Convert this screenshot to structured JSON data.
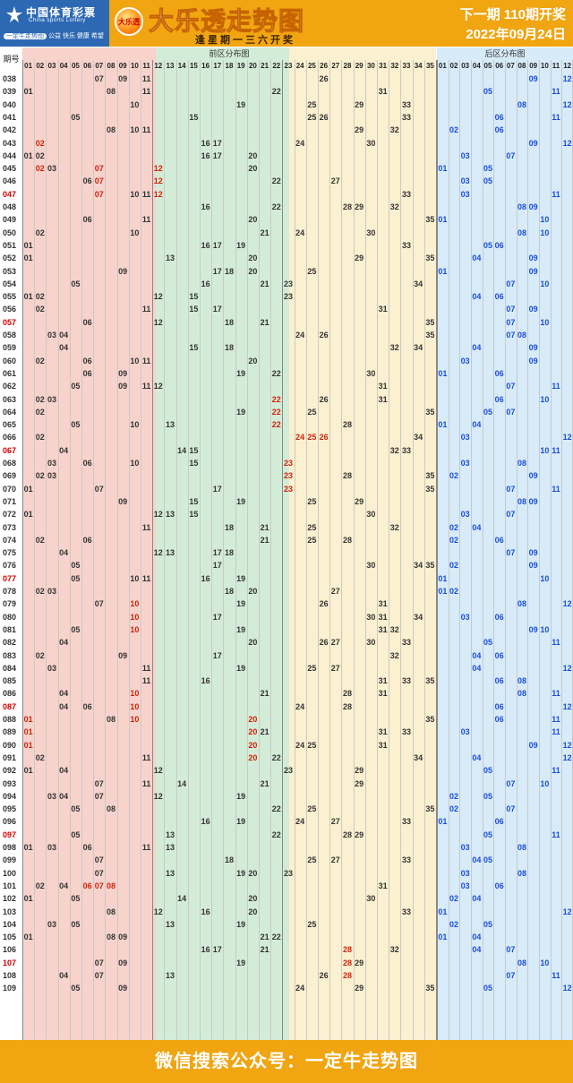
{
  "header": {
    "brand_cn": "中国体育彩票",
    "brand_en": "China sports Lottery",
    "slogan_pill": "一定牛走势图",
    "slogan": "公益 快乐 健康 希望",
    "badge": "大乐透",
    "title": "大乐透走势图",
    "subtitle": "逢星期一三六开奖",
    "next_draw": "下一期 110期开奖",
    "next_date": "2022年09月24日"
  },
  "table": {
    "issue_header": "期号",
    "front_zone_label": "前区分布图",
    "back_zone_label": "后区分布图",
    "front_columns": [
      "01",
      "02",
      "03",
      "04",
      "05",
      "06",
      "07",
      "08",
      "09",
      "10",
      "11",
      "12",
      "13",
      "14",
      "15",
      "16",
      "17",
      "18",
      "19",
      "20",
      "21",
      "22",
      "23",
      "24",
      "25",
      "26",
      "27",
      "28",
      "29",
      "30",
      "31",
      "32",
      "33",
      "34",
      "35"
    ],
    "back_columns": [
      "01",
      "02",
      "03",
      "04",
      "05",
      "06",
      "07",
      "08",
      "09",
      "10",
      "11",
      "12"
    ],
    "rows": [
      {
        "issue": "038",
        "front": [
          "07",
          "09",
          "11",
          "26"
        ],
        "back": [
          "09",
          "12"
        ]
      },
      {
        "issue": "039",
        "front": [
          "01",
          "08",
          "11",
          "22",
          "31"
        ],
        "back": [
          "05",
          "11"
        ]
      },
      {
        "issue": "040",
        "front": [
          "10",
          "19",
          "25",
          "29",
          "33"
        ],
        "back": [
          "08",
          "12"
        ]
      },
      {
        "issue": "041",
        "front": [
          "05",
          "15",
          "25",
          "26",
          "33"
        ],
        "back": [
          "06",
          "11"
        ]
      },
      {
        "issue": "042",
        "front": [
          "08",
          "10",
          "11",
          "29",
          "32"
        ],
        "back": [
          "02",
          "06"
        ]
      },
      {
        "issue": "043",
        "front": [
          "02",
          "16",
          "17",
          "24",
          "30"
        ],
        "back": [
          "09",
          "12"
        ]
      },
      {
        "issue": "044",
        "front": [
          "01",
          "02",
          "16",
          "17",
          "20"
        ],
        "back": [
          "03",
          "07"
        ]
      },
      {
        "issue": "045",
        "front": [
          "02",
          "03",
          "07",
          "12",
          "20"
        ],
        "back": [
          "01",
          "05"
        ]
      },
      {
        "issue": "046",
        "front": [
          "06",
          "07",
          "12",
          "22",
          "27"
        ],
        "back": [
          "03",
          "05"
        ]
      },
      {
        "issue": "047",
        "red": true,
        "front": [
          "07",
          "10",
          "11",
          "12",
          "33"
        ],
        "back": [
          "03",
          "11"
        ]
      },
      {
        "issue": "048",
        "front": [
          "16",
          "22",
          "28",
          "29",
          "32"
        ],
        "back": [
          "08",
          "09"
        ]
      },
      {
        "issue": "049",
        "front": [
          "06",
          "11",
          "20",
          "35"
        ],
        "back": [
          "01",
          "10"
        ]
      },
      {
        "issue": "050",
        "front": [
          "02",
          "10",
          "21",
          "24",
          "30"
        ],
        "back": [
          "08",
          "10"
        ]
      },
      {
        "issue": "051",
        "front": [
          "01",
          "16",
          "17",
          "19",
          "33"
        ],
        "back": [
          "05",
          "06"
        ]
      },
      {
        "issue": "052",
        "front": [
          "01",
          "13",
          "20",
          "29",
          "35"
        ],
        "back": [
          "04",
          "09"
        ]
      },
      {
        "issue": "053",
        "front": [
          "09",
          "17",
          "18",
          "20",
          "25"
        ],
        "back": [
          "01",
          "09"
        ]
      },
      {
        "issue": "054",
        "front": [
          "05",
          "16",
          "21",
          "23",
          "34"
        ],
        "back": [
          "07",
          "10"
        ]
      },
      {
        "issue": "055",
        "front": [
          "01",
          "02",
          "12",
          "15",
          "23"
        ],
        "back": [
          "04",
          "06"
        ]
      },
      {
        "issue": "056",
        "front": [
          "02",
          "11",
          "15",
          "17",
          "31"
        ],
        "back": [
          "07",
          "09"
        ]
      },
      {
        "issue": "057",
        "red": true,
        "front": [
          "06",
          "12",
          "18",
          "21",
          "35"
        ],
        "back": [
          "07",
          "10"
        ]
      },
      {
        "issue": "058",
        "front": [
          "03",
          "04",
          "24",
          "26",
          "35"
        ],
        "back": [
          "07",
          "08"
        ]
      },
      {
        "issue": "059",
        "front": [
          "04",
          "15",
          "18",
          "32",
          "34"
        ],
        "back": [
          "04",
          "09"
        ]
      },
      {
        "issue": "060",
        "front": [
          "02",
          "06",
          "10",
          "11",
          "20"
        ],
        "back": [
          "03",
          "09"
        ]
      },
      {
        "issue": "061",
        "front": [
          "06",
          "09",
          "19",
          "22",
          "30"
        ],
        "back": [
          "01",
          "06"
        ]
      },
      {
        "issue": "062",
        "front": [
          "05",
          "09",
          "11",
          "12",
          "31"
        ],
        "back": [
          "07",
          "11"
        ]
      },
      {
        "issue": "063",
        "front": [
          "02",
          "03",
          "22",
          "26",
          "31"
        ],
        "back": [
          "06",
          "10"
        ]
      },
      {
        "issue": "064",
        "front": [
          "02",
          "19",
          "22",
          "25",
          "35"
        ],
        "back": [
          "05",
          "07"
        ]
      },
      {
        "issue": "065",
        "front": [
          "05",
          "10",
          "13",
          "22",
          "28"
        ],
        "back": [
          "01",
          "04"
        ]
      },
      {
        "issue": "066",
        "front": [
          "02",
          "24",
          "25",
          "26",
          "34"
        ],
        "back": [
          "03",
          "12"
        ]
      },
      {
        "issue": "067",
        "red": true,
        "front": [
          "04",
          "14",
          "15",
          "32",
          "33"
        ],
        "back": [
          "10",
          "11"
        ]
      },
      {
        "issue": "068",
        "front": [
          "03",
          "06",
          "10",
          "15",
          "23"
        ],
        "back": [
          "03",
          "08"
        ]
      },
      {
        "issue": "069",
        "front": [
          "02",
          "03",
          "23",
          "28",
          "35"
        ],
        "back": [
          "02",
          "09"
        ]
      },
      {
        "issue": "070",
        "front": [
          "01",
          "07",
          "17",
          "23",
          "35"
        ],
        "back": [
          "07",
          "11"
        ]
      },
      {
        "issue": "071",
        "front": [
          "09",
          "15",
          "19",
          "25",
          "29"
        ],
        "back": [
          "08",
          "09"
        ]
      },
      {
        "issue": "072",
        "front": [
          "01",
          "12",
          "13",
          "15",
          "30"
        ],
        "back": [
          "03",
          "07"
        ]
      },
      {
        "issue": "073",
        "front": [
          "11",
          "18",
          "21",
          "25",
          "32"
        ],
        "back": [
          "02",
          "04"
        ]
      },
      {
        "issue": "074",
        "front": [
          "02",
          "06",
          "21",
          "25",
          "28"
        ],
        "back": [
          "02",
          "06"
        ]
      },
      {
        "issue": "075",
        "front": [
          "04",
          "12",
          "13",
          "17",
          "18"
        ],
        "back": [
          "07",
          "09"
        ]
      },
      {
        "issue": "076",
        "front": [
          "05",
          "17",
          "30",
          "34",
          "35"
        ],
        "back": [
          "02",
          "09"
        ]
      },
      {
        "issue": "077",
        "red": true,
        "front": [
          "05",
          "10",
          "11",
          "16",
          "19"
        ],
        "back": [
          "01",
          "10"
        ]
      },
      {
        "issue": "078",
        "front": [
          "02",
          "03",
          "18",
          "20",
          "27"
        ],
        "back": [
          "01",
          "02"
        ]
      },
      {
        "issue": "079",
        "front": [
          "07",
          "10",
          "19",
          "26",
          "31"
        ],
        "back": [
          "08",
          "12"
        ]
      },
      {
        "issue": "080",
        "front": [
          "10",
          "17",
          "30",
          "31",
          "34"
        ],
        "back": [
          "03",
          "06"
        ]
      },
      {
        "issue": "081",
        "front": [
          "05",
          "10",
          "19",
          "31",
          "32"
        ],
        "back": [
          "09",
          "10"
        ]
      },
      {
        "issue": "082",
        "front": [
          "04",
          "20",
          "26",
          "27",
          "30",
          "33"
        ],
        "back": [
          "05",
          "11"
        ]
      },
      {
        "issue": "083",
        "front": [
          "02",
          "09",
          "17",
          "32"
        ],
        "back": [
          "04",
          "06"
        ]
      },
      {
        "issue": "084",
        "front": [
          "03",
          "11",
          "19",
          "25",
          "27"
        ],
        "back": [
          "04",
          "12"
        ]
      },
      {
        "issue": "085",
        "front": [
          "11",
          "16",
          "31",
          "33",
          "35"
        ],
        "back": [
          "06",
          "08"
        ]
      },
      {
        "issue": "086",
        "front": [
          "04",
          "10",
          "21",
          "28",
          "31"
        ],
        "back": [
          "08",
          "11"
        ]
      },
      {
        "issue": "087",
        "red": true,
        "front": [
          "04",
          "06",
          "10",
          "24",
          "28"
        ],
        "back": [
          "06",
          "12"
        ]
      },
      {
        "issue": "088",
        "front": [
          "01",
          "08",
          "10",
          "20",
          "35"
        ],
        "back": [
          "06",
          "11"
        ]
      },
      {
        "issue": "089",
        "front": [
          "01",
          "20",
          "21",
          "31",
          "33"
        ],
        "back": [
          "03",
          "11"
        ]
      },
      {
        "issue": "090",
        "front": [
          "01",
          "20",
          "24",
          "25",
          "31"
        ],
        "back": [
          "09",
          "12"
        ]
      },
      {
        "issue": "091",
        "front": [
          "02",
          "11",
          "20",
          "22",
          "34"
        ],
        "back": [
          "04",
          "12"
        ]
      },
      {
        "issue": "092",
        "front": [
          "01",
          "04",
          "12",
          "23",
          "29"
        ],
        "back": [
          "05",
          "11"
        ]
      },
      {
        "issue": "093",
        "front": [
          "07",
          "11",
          "14",
          "21",
          "29"
        ],
        "back": [
          "07",
          "10"
        ]
      },
      {
        "issue": "094",
        "front": [
          "03",
          "04",
          "07",
          "12",
          "19"
        ],
        "back": [
          "02",
          "05"
        ]
      },
      {
        "issue": "095",
        "front": [
          "05",
          "08",
          "22",
          "25",
          "35"
        ],
        "back": [
          "02",
          "07"
        ]
      },
      {
        "issue": "096",
        "front": [
          "16",
          "19",
          "24",
          "27",
          "33"
        ],
        "back": [
          "01",
          "06"
        ]
      },
      {
        "issue": "097",
        "red": true,
        "front": [
          "05",
          "13",
          "22",
          "28",
          "29"
        ],
        "back": [
          "05",
          "11"
        ]
      },
      {
        "issue": "098",
        "front": [
          "01",
          "03",
          "06",
          "11",
          "13"
        ],
        "back": [
          "03",
          "08"
        ]
      },
      {
        "issue": "099",
        "front": [
          "07",
          "18",
          "25",
          "27",
          "33"
        ],
        "back": [
          "04",
          "05"
        ]
      },
      {
        "issue": "100",
        "front": [
          "07",
          "13",
          "19",
          "20",
          "23"
        ],
        "back": [
          "03",
          "08"
        ]
      },
      {
        "issue": "101",
        "front": [
          "02",
          "04",
          "06",
          "07",
          "08",
          "31"
        ],
        "back": [
          "03",
          "06"
        ]
      },
      {
        "issue": "102",
        "front": [
          "01",
          "05",
          "14",
          "20",
          "30"
        ],
        "back": [
          "02",
          "04"
        ]
      },
      {
        "issue": "103",
        "front": [
          "08",
          "12",
          "16",
          "20",
          "33"
        ],
        "back": [
          "01",
          "12"
        ]
      },
      {
        "issue": "104",
        "front": [
          "03",
          "05",
          "13",
          "19",
          "25"
        ],
        "back": [
          "02",
          "05"
        ]
      },
      {
        "issue": "105",
        "front": [
          "01",
          "08",
          "09",
          "21",
          "22"
        ],
        "back": [
          "01",
          "04"
        ]
      },
      {
        "issue": "106",
        "front": [
          "16",
          "17",
          "21",
          "28",
          "32"
        ],
        "back": [
          "04",
          "07"
        ]
      },
      {
        "issue": "107",
        "red": true,
        "front": [
          "07",
          "09",
          "19",
          "28",
          "29"
        ],
        "back": [
          "08",
          "10"
        ]
      },
      {
        "issue": "108",
        "front": [
          "04",
          "07",
          "13",
          "26",
          "28"
        ],
        "back": [
          "07",
          "11"
        ]
      },
      {
        "issue": "109",
        "front": [
          "05",
          "09",
          "24",
          "29",
          "35"
        ],
        "back": [
          "05",
          "12"
        ]
      }
    ],
    "highlight_front": {
      "043": [
        "02"
      ],
      "045": [
        "02",
        "07",
        "12"
      ],
      "046": [
        "07",
        "12"
      ],
      "047": [
        "07",
        "12"
      ],
      "063": [
        "22"
      ],
      "064": [
        "22"
      ],
      "065": [
        "22"
      ],
      "066": [
        "24",
        "25",
        "26"
      ],
      "068": [
        "23"
      ],
      "069": [
        "23"
      ],
      "070": [
        "23"
      ],
      "079": [
        "10"
      ],
      "080": [
        "10"
      ],
      "081": [
        "10"
      ],
      "086": [
        "10"
      ],
      "087": [
        "10"
      ],
      "088": [
        "01",
        "10",
        "20"
      ],
      "089": [
        "01",
        "20"
      ],
      "090": [
        "01",
        "20"
      ],
      "091": [
        "20"
      ],
      "101": [
        "06",
        "07",
        "08"
      ],
      "106": [
        "28"
      ],
      "107": [
        "28"
      ],
      "108": [
        "28"
      ]
    }
  },
  "footer": {
    "text": "微信搜索公众号：一定牛走势图"
  },
  "colors": {
    "accent": "#f0a511",
    "brand_blue": "#2d69b3",
    "front_zone_1": "#f7d3cc",
    "front_zone_2": "#d3ecd7",
    "front_zone_3": "#fbf0cf",
    "back_zone": "#d7ebf9",
    "front_number": "#333333",
    "highlight_number": "#d2220a",
    "back_number": "#1a4ed8",
    "grid_line": "#c9c9c9"
  }
}
